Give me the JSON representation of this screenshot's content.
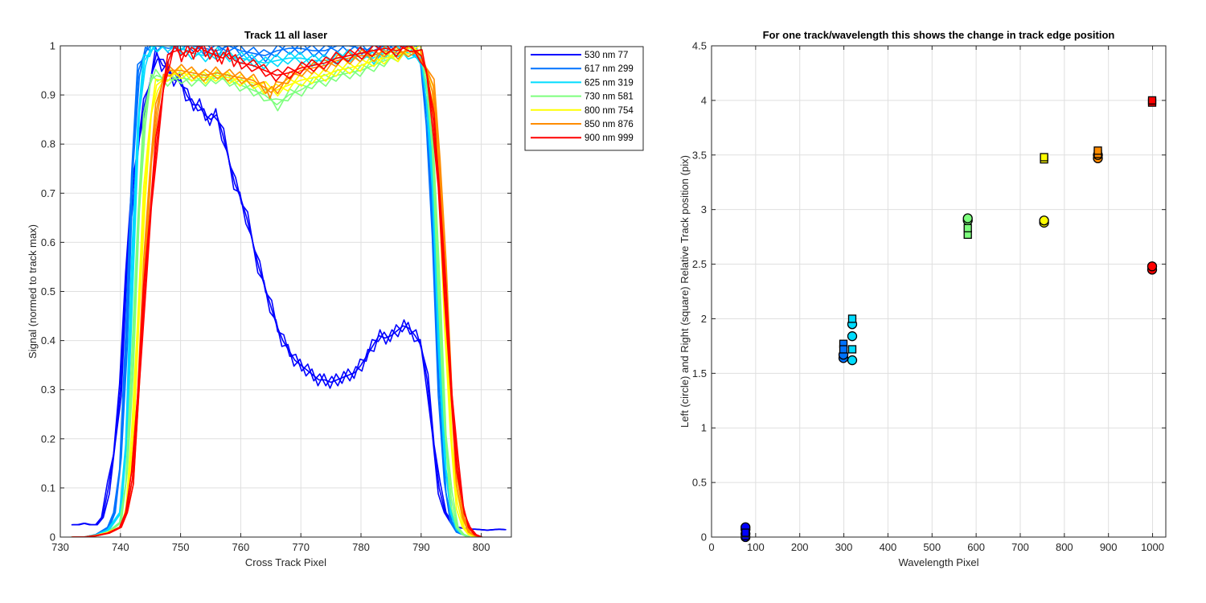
{
  "chart_data": [
    {
      "type": "line",
      "title": "Track 11  all laser",
      "xlabel": "Cross Track Pixel",
      "ylabel": "Signal (normed to track max)",
      "xlim": [
        730,
        805
      ],
      "ylim": [
        0,
        1
      ],
      "xticks": [
        730,
        740,
        750,
        760,
        770,
        780,
        790,
        800
      ],
      "yticks": [
        0,
        0.1,
        0.2,
        0.3,
        0.4,
        0.5,
        0.6,
        0.7,
        0.8,
        0.9,
        1
      ],
      "grid": true,
      "legend_location": "outside-top-right",
      "series": [
        {
          "name": "530 nm 77",
          "color": "#0000ff",
          "x": [
            732,
            733,
            734,
            735,
            736,
            737,
            738,
            739,
            740,
            741,
            742,
            743,
            744,
            745,
            746,
            747,
            748,
            749,
            750,
            751,
            752,
            753,
            754,
            755,
            756,
            757,
            758,
            759,
            760,
            761,
            762,
            763,
            764,
            765,
            766,
            767,
            768,
            769,
            770,
            771,
            772,
            773,
            774,
            775,
            776,
            777,
            778,
            779,
            780,
            781,
            782,
            783,
            784,
            785,
            786,
            787,
            788,
            789,
            790,
            791,
            792,
            793,
            794,
            795,
            796,
            797,
            798,
            799,
            800,
            801,
            802,
            803,
            804
          ],
          "y": [
            0.025,
            0.025,
            0.028,
            0.025,
            0.025,
            0.04,
            0.1,
            0.18,
            0.3,
            0.55,
            0.7,
            0.8,
            0.88,
            0.93,
            0.985,
            0.96,
            0.955,
            0.93,
            0.93,
            0.9,
            0.88,
            0.88,
            0.86,
            0.85,
            0.86,
            0.82,
            0.77,
            0.72,
            0.69,
            0.65,
            0.6,
            0.55,
            0.51,
            0.47,
            0.43,
            0.4,
            0.38,
            0.36,
            0.35,
            0.34,
            0.33,
            0.32,
            0.32,
            0.315,
            0.32,
            0.325,
            0.33,
            0.335,
            0.35,
            0.37,
            0.39,
            0.41,
            0.405,
            0.41,
            0.42,
            0.43,
            0.425,
            0.41,
            0.39,
            0.32,
            0.2,
            0.1,
            0.05,
            0.03,
            0.02,
            0.018,
            0.016,
            0.016,
            0.015,
            0.014,
            0.015,
            0.016,
            0.015
          ]
        },
        {
          "name": "617 nm 299",
          "color": "#0072ff",
          "x": [
            732,
            734,
            736,
            738,
            739,
            740,
            741,
            742,
            743,
            744,
            745,
            746,
            748,
            750,
            752,
            754,
            756,
            758,
            760,
            762,
            764,
            766,
            768,
            770,
            772,
            774,
            776,
            778,
            780,
            782,
            784,
            786,
            788,
            789,
            790,
            791,
            792,
            793,
            794,
            795,
            796,
            797,
            798
          ],
          "y": [
            0.0,
            0.0,
            0.005,
            0.02,
            0.05,
            0.15,
            0.4,
            0.75,
            0.95,
            0.985,
            1.0,
            1.0,
            0.995,
            1.0,
            1.0,
            0.995,
            0.99,
            1.0,
            0.99,
            0.985,
            0.98,
            0.99,
            0.995,
            0.995,
            0.99,
            0.99,
            1.0,
            1.0,
            0.995,
            0.99,
            1.0,
            1.0,
            1.0,
            0.99,
            0.96,
            0.85,
            0.6,
            0.3,
            0.1,
            0.03,
            0.01,
            0.005,
            0.0
          ]
        },
        {
          "name": "625 nm 319",
          "color": "#00dcff",
          "x": [
            732,
            734,
            736,
            738,
            740,
            741,
            742,
            743,
            744,
            745,
            746,
            748,
            750,
            752,
            754,
            756,
            758,
            760,
            762,
            764,
            766,
            768,
            770,
            772,
            774,
            776,
            778,
            780,
            782,
            784,
            786,
            788,
            790,
            791,
            792,
            793,
            794,
            795,
            796,
            797,
            798
          ],
          "y": [
            0.0,
            0.0,
            0.004,
            0.015,
            0.05,
            0.2,
            0.55,
            0.85,
            0.97,
            0.99,
            1.0,
            1.0,
            0.995,
            0.985,
            0.98,
            0.985,
            0.98,
            0.975,
            0.97,
            0.965,
            0.97,
            0.975,
            0.975,
            0.97,
            0.97,
            0.975,
            0.98,
            0.98,
            0.975,
            0.985,
            0.99,
            0.985,
            0.97,
            0.9,
            0.7,
            0.4,
            0.15,
            0.05,
            0.015,
            0.005,
            0.0
          ]
        },
        {
          "name": "730 nm 581",
          "color": "#7dff7d",
          "x": [
            732,
            734,
            736,
            738,
            740,
            741,
            742,
            743,
            744,
            745,
            746,
            748,
            750,
            752,
            754,
            756,
            758,
            760,
            762,
            764,
            766,
            768,
            770,
            772,
            774,
            776,
            778,
            780,
            782,
            784,
            786,
            788,
            790,
            791,
            792,
            793,
            794,
            795,
            796,
            797,
            798
          ],
          "y": [
            0.0,
            0.0,
            0.004,
            0.01,
            0.03,
            0.12,
            0.35,
            0.65,
            0.85,
            0.93,
            0.94,
            0.93,
            0.935,
            0.93,
            0.93,
            0.935,
            0.93,
            0.92,
            0.91,
            0.9,
            0.88,
            0.9,
            0.91,
            0.925,
            0.93,
            0.94,
            0.945,
            0.95,
            0.96,
            0.97,
            0.98,
            0.99,
            0.98,
            0.93,
            0.78,
            0.5,
            0.22,
            0.08,
            0.02,
            0.005,
            0.0
          ]
        },
        {
          "name": "800 nm 754",
          "color": "#ffff00",
          "x": [
            732,
            734,
            736,
            738,
            740,
            741,
            742,
            743,
            744,
            745,
            746,
            748,
            750,
            752,
            754,
            756,
            758,
            760,
            762,
            764,
            766,
            768,
            770,
            772,
            774,
            776,
            778,
            780,
            782,
            784,
            786,
            788,
            790,
            792,
            793,
            794,
            795,
            796,
            797,
            798,
            799
          ],
          "y": [
            0.0,
            0.0,
            0.003,
            0.01,
            0.02,
            0.06,
            0.2,
            0.45,
            0.7,
            0.85,
            0.92,
            0.94,
            0.945,
            0.94,
            0.935,
            0.94,
            0.935,
            0.93,
            0.925,
            0.915,
            0.91,
            0.92,
            0.93,
            0.935,
            0.94,
            0.95,
            0.955,
            0.96,
            0.97,
            0.975,
            0.98,
            0.995,
            0.99,
            0.9,
            0.72,
            0.45,
            0.2,
            0.07,
            0.02,
            0.005,
            0.0
          ]
        },
        {
          "name": "850 nm 876",
          "color": "#ff8c00",
          "x": [
            732,
            734,
            736,
            738,
            740,
            741,
            742,
            743,
            744,
            745,
            746,
            747,
            748,
            750,
            752,
            754,
            756,
            758,
            760,
            762,
            764,
            765,
            766,
            768,
            770,
            772,
            774,
            776,
            778,
            780,
            782,
            784,
            786,
            788,
            790,
            792,
            793,
            794,
            795,
            796,
            797,
            798,
            799,
            800
          ],
          "y": [
            0.0,
            0.0,
            0.003,
            0.008,
            0.02,
            0.05,
            0.12,
            0.3,
            0.55,
            0.75,
            0.87,
            0.93,
            0.95,
            0.95,
            0.945,
            0.94,
            0.945,
            0.94,
            0.935,
            0.93,
            0.915,
            0.905,
            0.915,
            0.935,
            0.95,
            0.955,
            0.96,
            0.97,
            0.975,
            0.98,
            0.98,
            0.99,
            0.985,
            0.99,
            0.98,
            0.92,
            0.78,
            0.55,
            0.3,
            0.12,
            0.04,
            0.01,
            0.003,
            0.0
          ]
        },
        {
          "name": "900 nm 999",
          "color": "#ff0000",
          "x": [
            732,
            734,
            736,
            738,
            740,
            741,
            742,
            743,
            744,
            745,
            746,
            747,
            748,
            749,
            750,
            751,
            752,
            753,
            754,
            755,
            756,
            757,
            758,
            759,
            760,
            762,
            764,
            766,
            768,
            770,
            772,
            774,
            776,
            778,
            780,
            782,
            784,
            786,
            788,
            790,
            791,
            792,
            793,
            794,
            795,
            796,
            797,
            798,
            799,
            800
          ],
          "y": [
            0.0,
            0.0,
            0.003,
            0.008,
            0.02,
            0.05,
            0.12,
            0.3,
            0.5,
            0.66,
            0.8,
            0.9,
            0.97,
            1.0,
            0.98,
            0.99,
            0.985,
            1.0,
            0.99,
            0.985,
            0.98,
            0.975,
            0.985,
            0.97,
            0.965,
            0.96,
            0.95,
            0.94,
            0.945,
            0.955,
            0.96,
            0.965,
            0.975,
            0.98,
            0.985,
            0.99,
            0.995,
            0.99,
            1.0,
            0.98,
            0.94,
            0.85,
            0.7,
            0.5,
            0.3,
            0.15,
            0.06,
            0.02,
            0.005,
            0.0
          ]
        }
      ]
    },
    {
      "type": "scatter",
      "title": "For one track/wavelength this shows the change in track edge position",
      "xlabel": "Wavelength Pixel",
      "ylabel": "Left (circle) and Right (square) Relative Track position (pix)",
      "xlim": [
        0,
        1030
      ],
      "ylim": [
        0,
        4.5
      ],
      "xticks": [
        0,
        100,
        200,
        300,
        400,
        500,
        600,
        700,
        800,
        900,
        1000
      ],
      "yticks": [
        0,
        0.5,
        1,
        1.5,
        2,
        2.5,
        3,
        3.5,
        4,
        4.5
      ],
      "grid": true,
      "points": [
        {
          "x": 77,
          "y": 0.0,
          "marker": "circle",
          "color": "#0000ff"
        },
        {
          "x": 77,
          "y": 0.03,
          "marker": "circle",
          "color": "#0000ff"
        },
        {
          "x": 77,
          "y": 0.07,
          "marker": "circle",
          "color": "#0000ff"
        },
        {
          "x": 77,
          "y": 0.09,
          "marker": "circle",
          "color": "#0000ff"
        },
        {
          "x": 77,
          "y": 0.01,
          "marker": "square",
          "color": "#0000ff"
        },
        {
          "x": 77,
          "y": 0.04,
          "marker": "square",
          "color": "#0000ff"
        },
        {
          "x": 299,
          "y": 1.64,
          "marker": "circle",
          "color": "#0072ff"
        },
        {
          "x": 299,
          "y": 1.67,
          "marker": "circle",
          "color": "#0072ff"
        },
        {
          "x": 299,
          "y": 1.77,
          "marker": "square",
          "color": "#0072ff"
        },
        {
          "x": 299,
          "y": 1.72,
          "marker": "square",
          "color": "#0072ff"
        },
        {
          "x": 319,
          "y": 1.62,
          "marker": "circle",
          "color": "#00dcff"
        },
        {
          "x": 319,
          "y": 1.84,
          "marker": "circle",
          "color": "#00dcff"
        },
        {
          "x": 319,
          "y": 1.95,
          "marker": "circle",
          "color": "#00dcff"
        },
        {
          "x": 319,
          "y": 1.72,
          "marker": "square",
          "color": "#00dcff"
        },
        {
          "x": 319,
          "y": 2.0,
          "marker": "square",
          "color": "#00dcff"
        },
        {
          "x": 581,
          "y": 2.9,
          "marker": "circle",
          "color": "#7dff7d"
        },
        {
          "x": 581,
          "y": 2.92,
          "marker": "circle",
          "color": "#7dff7d"
        },
        {
          "x": 581,
          "y": 2.77,
          "marker": "square",
          "color": "#7dff7d"
        },
        {
          "x": 581,
          "y": 2.83,
          "marker": "square",
          "color": "#7dff7d"
        },
        {
          "x": 754,
          "y": 2.88,
          "marker": "circle",
          "color": "#ffff00"
        },
        {
          "x": 754,
          "y": 2.9,
          "marker": "circle",
          "color": "#ffff00"
        },
        {
          "x": 754,
          "y": 3.46,
          "marker": "square",
          "color": "#ffff00"
        },
        {
          "x": 754,
          "y": 3.48,
          "marker": "square",
          "color": "#ffff00"
        },
        {
          "x": 876,
          "y": 3.47,
          "marker": "circle",
          "color": "#ff8c00"
        },
        {
          "x": 876,
          "y": 3.5,
          "marker": "circle",
          "color": "#ff8c00"
        },
        {
          "x": 876,
          "y": 3.51,
          "marker": "square",
          "color": "#ff8c00"
        },
        {
          "x": 876,
          "y": 3.54,
          "marker": "square",
          "color": "#ff8c00"
        },
        {
          "x": 999,
          "y": 2.45,
          "marker": "circle",
          "color": "#ff0000"
        },
        {
          "x": 999,
          "y": 2.48,
          "marker": "circle",
          "color": "#ff0000"
        },
        {
          "x": 999,
          "y": 3.98,
          "marker": "square",
          "color": "#ff0000"
        },
        {
          "x": 999,
          "y": 4.0,
          "marker": "square",
          "color": "#ff0000"
        }
      ]
    }
  ]
}
